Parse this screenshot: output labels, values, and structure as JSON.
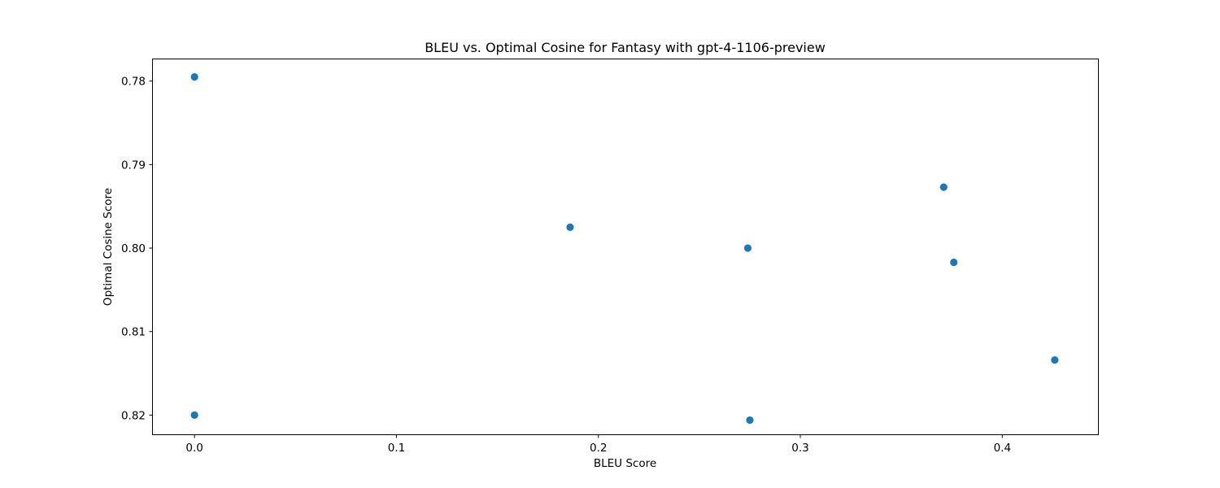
{
  "chart_data": {
    "type": "scatter",
    "title": "BLEU vs. Optimal Cosine for Fantasy with gpt-4-1106-preview",
    "xlabel": "BLEU Score",
    "ylabel": "Optimal Cosine Score",
    "xlim": [
      -0.0206,
      0.4474
    ],
    "ylim": [
      0.8223,
      0.7774
    ],
    "y_inverted": true,
    "grid": false,
    "legend": "none",
    "marker_color": "#1f77b4",
    "xticks": [
      0.0,
      0.1,
      0.2,
      0.3,
      0.4
    ],
    "xtick_labels": [
      "0.0",
      "0.1",
      "0.2",
      "0.3",
      "0.4"
    ],
    "yticks": [
      0.78,
      0.79,
      0.8,
      0.81,
      0.82
    ],
    "ytick_labels": [
      "0.78",
      "0.79",
      "0.80",
      "0.81",
      "0.82"
    ],
    "points": [
      {
        "x": 0.0,
        "y": 0.7795
      },
      {
        "x": 0.0,
        "y": 0.82
      },
      {
        "x": 0.186,
        "y": 0.7975
      },
      {
        "x": 0.274,
        "y": 0.8
      },
      {
        "x": 0.275,
        "y": 0.8206
      },
      {
        "x": 0.371,
        "y": 0.7927
      },
      {
        "x": 0.376,
        "y": 0.8017
      },
      {
        "x": 0.426,
        "y": 0.8134
      }
    ]
  }
}
